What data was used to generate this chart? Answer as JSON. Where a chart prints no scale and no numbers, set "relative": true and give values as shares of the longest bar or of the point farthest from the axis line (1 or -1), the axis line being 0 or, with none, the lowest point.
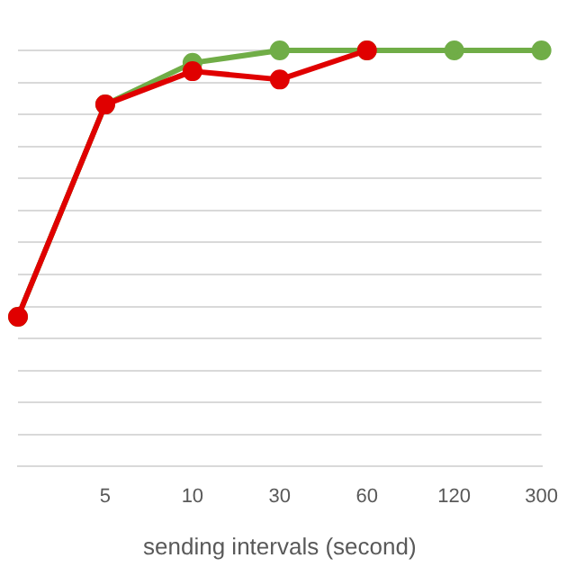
{
  "chart_data": {
    "type": "line",
    "relative": true,
    "xlabel": "sending intervals (second)",
    "categories": [
      null,
      "5",
      "10",
      "30",
      "60",
      "120",
      "300"
    ],
    "series": [
      {
        "color": "#e00000",
        "values": [
          0.36,
          0.87,
          0.95,
          0.93,
          1,
          null,
          null
        ]
      },
      {
        "color": "#70ad47",
        "values": [
          0.36,
          0.87,
          0.97,
          1,
          1,
          1,
          1
        ]
      }
    ],
    "grid": "y",
    "legend": false,
    "marker": "circle",
    "line_style": "solid"
  }
}
